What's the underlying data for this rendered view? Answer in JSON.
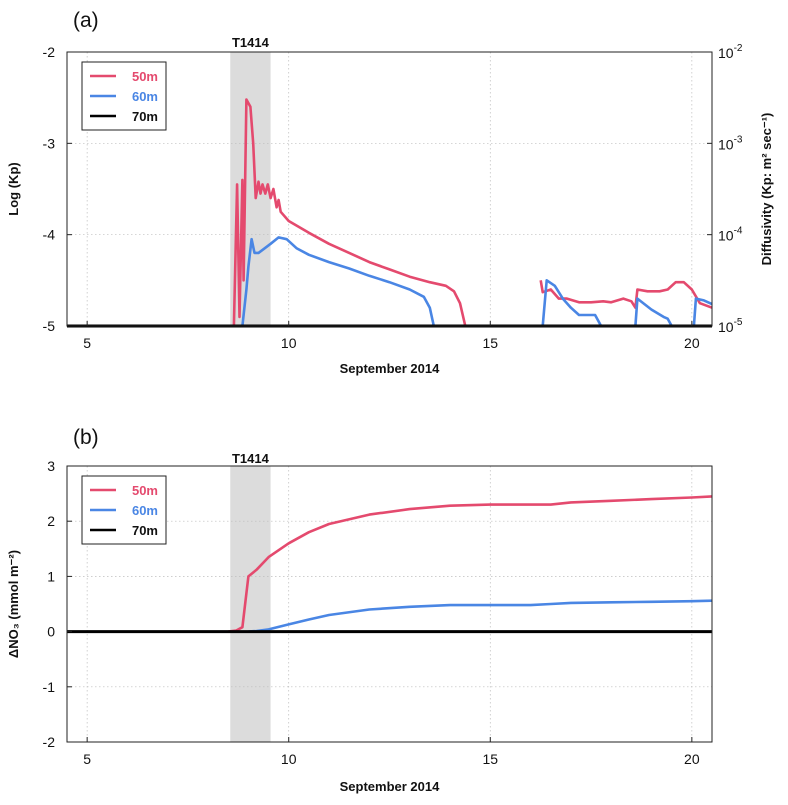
{
  "chart_data": [
    {
      "type": "line",
      "panel_label": "(a)",
      "xlabel": "September 2014",
      "ylabel": "Log (Kp)",
      "ylabel_right": "Diffusivity (Kp: m² sec⁻¹)",
      "xlim": [
        4.5,
        20.5
      ],
      "ylim": [
        -5,
        -2
      ],
      "x_ticks": [
        5,
        10,
        15,
        20
      ],
      "y_ticks": [
        -2,
        -3,
        -4,
        -5
      ],
      "y_ticks_right": [
        {
          "value": -2,
          "base": "10",
          "exp": "-2"
        },
        {
          "value": -3,
          "base": "10",
          "exp": "-3"
        },
        {
          "value": -4,
          "base": "10",
          "exp": "-4"
        },
        {
          "value": -5,
          "base": "10",
          "exp": "-5"
        }
      ],
      "grid": true,
      "legend_position": "top-left",
      "shaded_band": {
        "label": "T1414",
        "x": [
          8.55,
          9.55
        ]
      },
      "series": [
        {
          "name": "50m",
          "color": "#e44a6e",
          "segments": [
            [
              [
                8.64,
                -5.0
              ],
              [
                8.72,
                -3.45
              ],
              [
                8.78,
                -4.9
              ],
              [
                8.85,
                -3.4
              ],
              [
                8.88,
                -4.5
              ],
              [
                8.95,
                -2.52
              ],
              [
                9.05,
                -2.6
              ],
              [
                9.12,
                -3.0
              ],
              [
                9.18,
                -3.6
              ],
              [
                9.25,
                -3.42
              ],
              [
                9.3,
                -3.55
              ],
              [
                9.35,
                -3.45
              ],
              [
                9.42,
                -3.55
              ],
              [
                9.48,
                -3.45
              ],
              [
                9.55,
                -3.6
              ],
              [
                9.62,
                -3.5
              ],
              [
                9.7,
                -3.7
              ],
              [
                9.75,
                -3.62
              ],
              [
                9.8,
                -3.75
              ],
              [
                10.0,
                -3.85
              ],
              [
                10.5,
                -3.98
              ],
              [
                11.0,
                -4.1
              ],
              [
                11.5,
                -4.2
              ],
              [
                12.0,
                -4.3
              ],
              [
                12.5,
                -4.38
              ],
              [
                13.0,
                -4.46
              ],
              [
                13.5,
                -4.52
              ],
              [
                13.9,
                -4.56
              ],
              [
                14.1,
                -4.62
              ],
              [
                14.25,
                -4.75
              ],
              [
                14.38,
                -5.0
              ]
            ],
            [
              [
                16.25,
                -4.5
              ],
              [
                16.3,
                -4.63
              ],
              [
                16.5,
                -4.6
              ],
              [
                16.7,
                -4.7
              ],
              [
                16.9,
                -4.7
              ],
              [
                17.2,
                -4.74
              ],
              [
                17.5,
                -4.74
              ],
              [
                17.8,
                -4.73
              ],
              [
                18.0,
                -4.74
              ],
              [
                18.3,
                -4.7
              ],
              [
                18.5,
                -4.73
              ],
              [
                18.6,
                -4.8
              ],
              [
                18.65,
                -4.6
              ],
              [
                18.9,
                -4.62
              ],
              [
                19.2,
                -4.62
              ],
              [
                19.4,
                -4.6
              ],
              [
                19.6,
                -4.52
              ],
              [
                19.8,
                -4.52
              ],
              [
                20.0,
                -4.6
              ],
              [
                20.2,
                -4.75
              ],
              [
                20.5,
                -4.8
              ]
            ]
          ]
        },
        {
          "name": "60m",
          "color": "#4a86e4",
          "segments": [
            [
              [
                8.85,
                -5.0
              ],
              [
                8.95,
                -4.6
              ],
              [
                9.0,
                -4.35
              ],
              [
                9.08,
                -4.05
              ],
              [
                9.15,
                -4.2
              ],
              [
                9.25,
                -4.2
              ],
              [
                9.4,
                -4.15
              ],
              [
                9.55,
                -4.1
              ],
              [
                9.75,
                -4.03
              ],
              [
                9.95,
                -4.05
              ],
              [
                10.2,
                -4.15
              ],
              [
                10.5,
                -4.22
              ],
              [
                11.0,
                -4.3
              ],
              [
                11.5,
                -4.37
              ],
              [
                12.0,
                -4.45
              ],
              [
                12.5,
                -4.52
              ],
              [
                13.0,
                -4.6
              ],
              [
                13.35,
                -4.68
              ],
              [
                13.5,
                -4.8
              ],
              [
                13.6,
                -5.0
              ]
            ],
            [
              [
                16.3,
                -5.0
              ],
              [
                16.4,
                -4.5
              ],
              [
                16.6,
                -4.56
              ],
              [
                16.8,
                -4.7
              ],
              [
                17.0,
                -4.8
              ],
              [
                17.2,
                -4.88
              ],
              [
                17.6,
                -4.88
              ],
              [
                17.75,
                -5.0
              ]
            ],
            [
              [
                18.6,
                -5.0
              ],
              [
                18.65,
                -4.7
              ],
              [
                19.0,
                -4.82
              ],
              [
                19.3,
                -4.9
              ],
              [
                19.4,
                -4.92
              ],
              [
                19.5,
                -5.0
              ]
            ],
            [
              [
                20.05,
                -5.0
              ],
              [
                20.1,
                -4.7
              ],
              [
                20.3,
                -4.72
              ],
              [
                20.5,
                -4.76
              ]
            ]
          ]
        },
        {
          "name": "70m",
          "color": "#000000",
          "segments": [
            [
              [
                4.5,
                -5.0
              ],
              [
                20.5,
                -5.0
              ]
            ]
          ]
        }
      ]
    },
    {
      "type": "line",
      "panel_label": "(b)",
      "xlabel": "September 2014",
      "ylabel": "ΔNO₃ (mmol m⁻²)",
      "xlim": [
        4.5,
        20.5
      ],
      "ylim": [
        -2,
        3
      ],
      "x_ticks": [
        5,
        10,
        15,
        20
      ],
      "y_ticks": [
        3,
        2,
        1,
        0,
        -1,
        -2
      ],
      "grid": true,
      "legend_position": "top-left",
      "shaded_band": {
        "label": "T1414",
        "x": [
          8.55,
          9.55
        ]
      },
      "series": [
        {
          "name": "50m",
          "color": "#e44a6e",
          "segments": [
            [
              [
                8.5,
                0.0
              ],
              [
                8.7,
                0.02
              ],
              [
                8.85,
                0.08
              ],
              [
                9.0,
                1.0
              ],
              [
                9.2,
                1.12
              ],
              [
                9.5,
                1.35
              ],
              [
                10.0,
                1.6
              ],
              [
                10.5,
                1.8
              ],
              [
                11.0,
                1.95
              ],
              [
                12.0,
                2.12
              ],
              [
                13.0,
                2.22
              ],
              [
                14.0,
                2.28
              ],
              [
                15.0,
                2.3
              ],
              [
                16.0,
                2.3
              ],
              [
                16.5,
                2.3
              ],
              [
                17.0,
                2.34
              ],
              [
                18.0,
                2.37
              ],
              [
                19.0,
                2.4
              ],
              [
                20.0,
                2.43
              ],
              [
                20.5,
                2.45
              ]
            ]
          ]
        },
        {
          "name": "60m",
          "color": "#4a86e4",
          "segments": [
            [
              [
                9.0,
                0.0
              ],
              [
                9.2,
                0.01
              ],
              [
                9.5,
                0.04
              ],
              [
                10.0,
                0.13
              ],
              [
                10.5,
                0.22
              ],
              [
                11.0,
                0.3
              ],
              [
                12.0,
                0.4
              ],
              [
                13.0,
                0.45
              ],
              [
                14.0,
                0.48
              ],
              [
                15.0,
                0.48
              ],
              [
                16.0,
                0.48
              ],
              [
                16.5,
                0.5
              ],
              [
                17.0,
                0.52
              ],
              [
                18.0,
                0.53
              ],
              [
                19.0,
                0.54
              ],
              [
                20.0,
                0.55
              ],
              [
                20.5,
                0.56
              ]
            ]
          ]
        },
        {
          "name": "70m",
          "color": "#000000",
          "segments": [
            [
              [
                4.5,
                0.0
              ],
              [
                20.5,
                0.0
              ]
            ]
          ]
        }
      ]
    }
  ]
}
